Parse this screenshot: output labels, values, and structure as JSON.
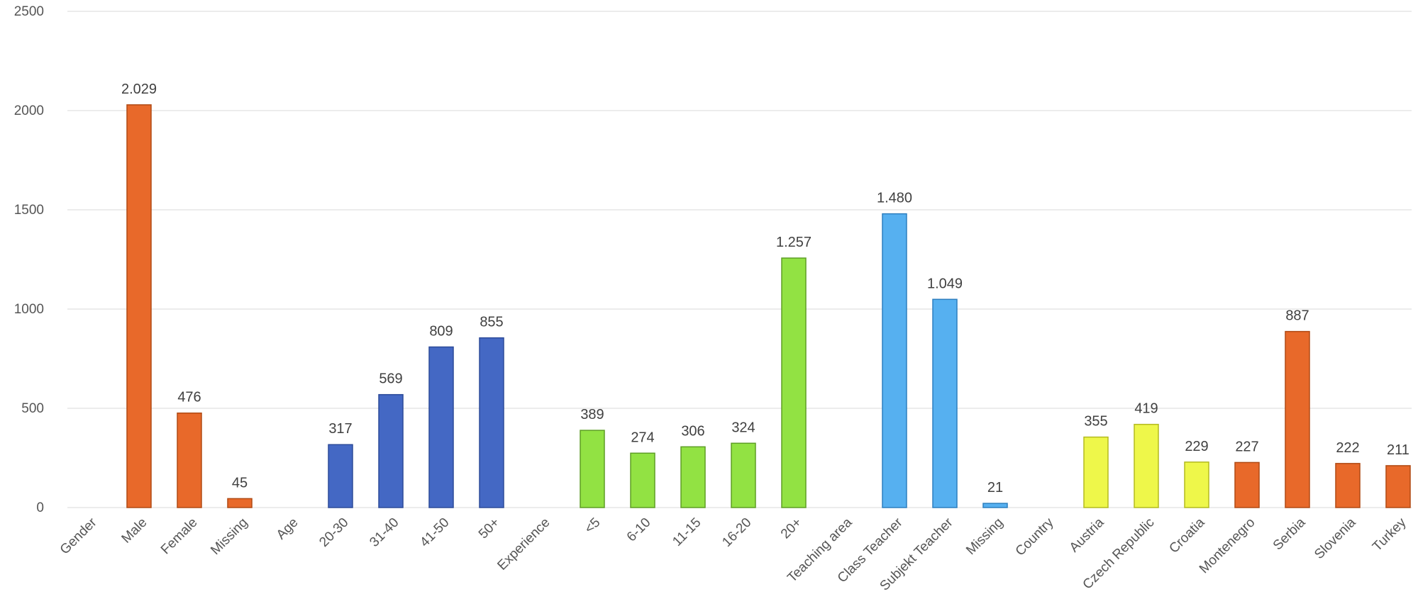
{
  "chart_data": {
    "type": "bar",
    "title": "",
    "xlabel": "",
    "ylabel": "",
    "ylim": [
      0,
      2500
    ],
    "yticks": [
      0,
      500,
      1000,
      1500,
      2000,
      2500
    ],
    "ytick_labels": [
      "0",
      "500",
      "1000",
      "1500",
      "2000",
      "2500"
    ],
    "grid": true,
    "legend": "none",
    "categories": [
      "Gender",
      "Male",
      "Female",
      "Missing",
      "Age",
      "20-30",
      "31-40",
      "41-50",
      "50+",
      "Experience",
      "<5",
      "6-10",
      "11-15",
      "16-20",
      "20+",
      "Teaching area",
      "Class Teacher",
      "Subjekt Teacher",
      "Missing",
      "Country",
      "Austria",
      "Czech Republic",
      "Croatia",
      "Montenegro",
      "Serbia",
      "Slovenia",
      "Turkey"
    ],
    "values": [
      null,
      2029,
      476,
      45,
      null,
      317,
      569,
      809,
      855,
      null,
      389,
      274,
      306,
      324,
      1257,
      null,
      1480,
      1049,
      21,
      null,
      355,
      419,
      229,
      227,
      887,
      222,
      211
    ],
    "data_labels": [
      "",
      "2.029",
      "476",
      "45",
      "",
      "317",
      "569",
      "809",
      "855",
      "",
      "389",
      "274",
      "306",
      "324",
      "1.257",
      "",
      "1.480",
      "1.049",
      "21",
      "",
      "355",
      "419",
      "229",
      "227",
      "887",
      "222",
      "211"
    ],
    "bar_colors": [
      "",
      "#e8692a",
      "#e8692a",
      "#e8692a",
      "",
      "#4468c4",
      "#4468c4",
      "#4468c4",
      "#4468c4",
      "",
      "#92e243",
      "#92e243",
      "#92e243",
      "#92e243",
      "#92e243",
      "",
      "#56b0f0",
      "#56b0f0",
      "#56b0f0",
      "",
      "#eef74a",
      "#eef74a",
      "#eef74a",
      "#e8692a",
      "#e8692a",
      "#e8692a",
      "#e8692a"
    ],
    "bar_stroke_colors": [
      "",
      "#b04a14",
      "#b04a14",
      "#b04a14",
      "",
      "#2c4a99",
      "#2c4a99",
      "#2c4a99",
      "#2c4a99",
      "",
      "#5e9e25",
      "#5e9e25",
      "#5e9e25",
      "#5e9e25",
      "#5e9e25",
      "",
      "#2d7fbf",
      "#2d7fbf",
      "#2d7fbf",
      "",
      "#b3ba20",
      "#b3ba20",
      "#b3ba20",
      "#b04a14",
      "#b04a14",
      "#b04a14",
      "#b04a14"
    ]
  }
}
